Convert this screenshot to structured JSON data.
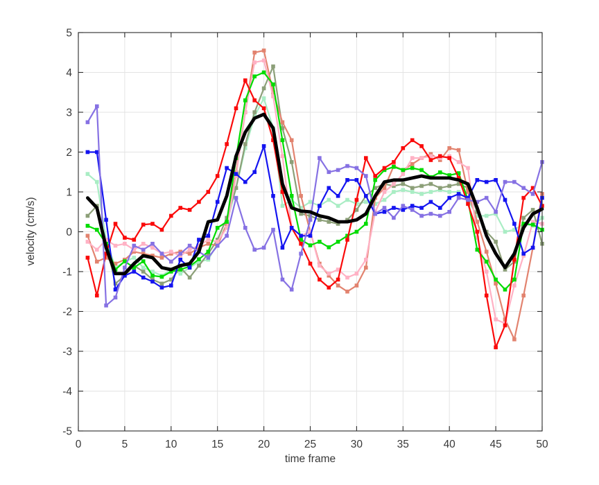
{
  "figure": {
    "xlabel": "time frame",
    "ylabel": "velocity (cm/s)"
  },
  "style": {
    "background": "#ffffff",
    "grid_color": "#e3e3e3",
    "axis_color": "#2a2a2a",
    "tick_label_color": "#383838",
    "mean_line_color": "#000000"
  },
  "chart_data": {
    "type": "line",
    "title": "",
    "xlabel": "time frame",
    "ylabel": "velocity (cm/s)",
    "xlim": [
      0,
      50
    ],
    "ylim": [
      -5,
      5
    ],
    "xticks": [
      0,
      5,
      10,
      15,
      20,
      25,
      30,
      35,
      40,
      45,
      50
    ],
    "xtick_labels": [
      "0",
      "5",
      "10",
      "15",
      "20",
      "25",
      "30",
      "35",
      "40",
      "45",
      "50"
    ],
    "yticks": [
      -5,
      -4,
      -3,
      -2,
      -1,
      0,
      1,
      2,
      3,
      4,
      5
    ],
    "ytick_labels": [
      "-5",
      "-4",
      "-3",
      "-2",
      "-1",
      "0",
      "1",
      "2",
      "3",
      "4",
      "5"
    ],
    "grid": true,
    "legend": "none",
    "x": [
      1,
      2,
      3,
      4,
      5,
      6,
      7,
      8,
      9,
      10,
      11,
      12,
      13,
      14,
      15,
      16,
      17,
      18,
      19,
      20,
      21,
      22,
      23,
      24,
      25,
      26,
      27,
      28,
      29,
      30,
      31,
      32,
      33,
      34,
      35,
      36,
      37,
      38,
      39,
      40,
      41,
      42,
      43,
      44,
      45,
      46,
      47,
      48,
      49,
      50
    ],
    "series": [
      {
        "name": "mint",
        "color": "#a9edc4",
        "line_width": 2.2,
        "marker": "square",
        "values": [
          1.45,
          1.25,
          -0.2,
          -0.9,
          -0.75,
          -0.65,
          -0.9,
          -1.0,
          -1.1,
          -0.95,
          -1.05,
          -0.9,
          -0.75,
          -0.7,
          -0.3,
          0.2,
          1.1,
          2.1,
          2.9,
          3.35,
          2.6,
          0.65,
          0.8,
          0.6,
          0.75,
          0.65,
          0.8,
          0.65,
          0.8,
          0.7,
          0.75,
          0.7,
          0.8,
          1.0,
          1.05,
          1.0,
          0.95,
          1.0,
          1.05,
          1.0,
          1.0,
          0.8,
          0.4,
          0.4,
          0.45,
          0.0,
          0.05,
          0.2,
          0.15,
          0.35
        ]
      },
      {
        "name": "olive",
        "color": "#8c9f78",
        "line_width": 2.2,
        "marker": "square",
        "values": [
          0.4,
          0.65,
          -0.3,
          -1.3,
          -1.1,
          -0.85,
          -1.0,
          -1.2,
          -1.3,
          -1.2,
          -0.9,
          -1.15,
          -0.85,
          -0.55,
          -0.2,
          0.35,
          1.1,
          2.2,
          3.0,
          3.6,
          4.15,
          2.6,
          1.75,
          0.45,
          0.4,
          0.3,
          0.25,
          0.2,
          0.3,
          0.55,
          0.9,
          1.1,
          1.2,
          1.15,
          1.2,
          1.1,
          1.15,
          1.2,
          1.1,
          1.15,
          1.2,
          1.1,
          0.5,
          0.0,
          -0.25,
          -0.95,
          -0.75,
          0.35,
          0.55,
          -0.3
        ]
      },
      {
        "name": "salmon",
        "color": "#e2836f",
        "line_width": 2.2,
        "marker": "square",
        "values": [
          -0.1,
          -0.75,
          -0.65,
          -0.8,
          -0.7,
          -0.5,
          -0.55,
          -0.6,
          -0.65,
          -0.55,
          -0.5,
          -0.55,
          -0.4,
          -0.3,
          -0.35,
          0.2,
          1.5,
          3.0,
          4.5,
          4.55,
          3.5,
          2.75,
          2.3,
          0.9,
          0.0,
          -0.8,
          -1.1,
          -1.35,
          -1.5,
          -1.35,
          -0.9,
          0.85,
          1.1,
          1.65,
          1.55,
          1.7,
          1.85,
          1.95,
          1.8,
          2.1,
          2.05,
          1.0,
          0.25,
          -0.5,
          -1.3,
          -2.2,
          -2.7,
          -1.6,
          -0.4,
          0.95
        ]
      },
      {
        "name": "pink",
        "color": "#ffb1c4",
        "line_width": 2.2,
        "marker": "square",
        "values": [
          -0.25,
          -0.45,
          -0.2,
          -0.35,
          -0.3,
          -0.45,
          -0.3,
          -0.4,
          -0.55,
          -0.5,
          -0.6,
          -0.45,
          -0.35,
          -0.2,
          -0.25,
          0.1,
          1.4,
          3.0,
          4.25,
          4.3,
          3.4,
          1.9,
          0.1,
          -0.1,
          0.0,
          -0.85,
          -1.05,
          -0.95,
          -1.15,
          -1.05,
          -0.7,
          0.5,
          1.0,
          1.2,
          1.45,
          1.85,
          1.85,
          1.9,
          1.85,
          1.9,
          1.75,
          1.6,
          -0.15,
          -1.0,
          -2.2,
          -2.3,
          -1.35,
          -0.6,
          0.25,
          0.2
        ]
      },
      {
        "name": "green",
        "color": "#00dc00",
        "line_width": 2.2,
        "marker": "square",
        "values": [
          0.15,
          0.05,
          -0.3,
          -0.95,
          -0.74,
          -0.9,
          -0.74,
          -1.1,
          -1.13,
          -1.0,
          -0.95,
          -0.87,
          -0.69,
          -0.5,
          0.1,
          0.25,
          1.85,
          3.3,
          3.9,
          4.0,
          3.7,
          2.3,
          0.9,
          -0.2,
          -0.34,
          -0.25,
          -0.39,
          -0.25,
          -0.1,
          0.0,
          0.2,
          1.3,
          1.55,
          1.63,
          1.55,
          1.6,
          1.55,
          1.37,
          1.49,
          1.42,
          1.47,
          0.8,
          -0.45,
          -0.75,
          -1.2,
          -1.45,
          -1.2,
          0.2,
          0.18,
          0.05
        ]
      },
      {
        "name": "red",
        "color": "#fa0a0a",
        "line_width": 2.2,
        "marker": "square",
        "values": [
          -0.65,
          -1.6,
          -0.55,
          0.2,
          -0.15,
          -0.2,
          0.18,
          0.2,
          0.05,
          0.4,
          0.6,
          0.55,
          0.75,
          1.0,
          1.4,
          2.2,
          3.1,
          3.8,
          3.3,
          3.1,
          2.3,
          1.0,
          0.1,
          -0.3,
          -0.8,
          -1.2,
          -1.4,
          -1.2,
          -0.2,
          0.8,
          1.85,
          1.4,
          1.6,
          1.75,
          2.1,
          2.3,
          2.15,
          1.8,
          1.9,
          1.85,
          1.35,
          0.7,
          0.0,
          -1.6,
          -2.9,
          -2.35,
          -0.7,
          0.85,
          1.1,
          0.65
        ]
      },
      {
        "name": "blue",
        "color": "#1414f0",
        "line_width": 2.2,
        "marker": "square",
        "values": [
          2.0,
          2.0,
          0.3,
          -1.45,
          -1.1,
          -1.0,
          -1.15,
          -1.25,
          -1.4,
          -1.35,
          -0.7,
          -0.9,
          -0.2,
          -0.1,
          0.75,
          1.6,
          1.45,
          1.25,
          1.5,
          2.15,
          0.9,
          -0.4,
          0.1,
          -0.1,
          -0.1,
          0.65,
          1.1,
          0.9,
          1.3,
          1.3,
          0.9,
          0.45,
          0.5,
          0.6,
          0.55,
          0.65,
          0.6,
          0.75,
          0.6,
          0.85,
          0.95,
          0.85,
          1.3,
          1.25,
          1.3,
          0.8,
          0.2,
          -0.55,
          -0.4,
          0.85
        ]
      },
      {
        "name": "purple",
        "color": "#8671e3",
        "line_width": 2.2,
        "marker": "square",
        "values": [
          2.75,
          3.15,
          -1.85,
          -1.65,
          -0.9,
          -0.35,
          -0.45,
          -0.3,
          -0.55,
          -0.75,
          -0.55,
          -0.35,
          -0.5,
          -0.65,
          -0.35,
          -0.1,
          0.85,
          0.1,
          -0.45,
          -0.4,
          0.05,
          -1.2,
          -1.45,
          -0.55,
          0.3,
          1.85,
          1.5,
          1.55,
          1.65,
          1.6,
          1.4,
          0.45,
          0.6,
          0.35,
          0.65,
          0.55,
          0.4,
          0.45,
          0.4,
          0.5,
          0.85,
          0.8,
          0.75,
          0.85,
          0.5,
          1.25,
          1.25,
          1.1,
          0.95,
          1.75
        ]
      },
      {
        "name": "mean",
        "color": "#000000",
        "line_width": 4.8,
        "marker": "none",
        "values": [
          0.85,
          0.6,
          -0.4,
          -1.05,
          -1.05,
          -0.8,
          -0.6,
          -0.65,
          -0.9,
          -0.95,
          -0.85,
          -0.8,
          -0.5,
          0.25,
          0.3,
          0.9,
          1.9,
          2.5,
          2.85,
          2.95,
          2.6,
          1.2,
          0.6,
          0.52,
          0.5,
          0.4,
          0.35,
          0.25,
          0.25,
          0.3,
          0.45,
          0.9,
          1.25,
          1.3,
          1.3,
          1.35,
          1.4,
          1.35,
          1.35,
          1.35,
          1.3,
          1.2,
          0.6,
          -0.1,
          -0.55,
          -0.9,
          -0.55,
          0.1,
          0.45,
          0.57
        ]
      }
    ]
  }
}
